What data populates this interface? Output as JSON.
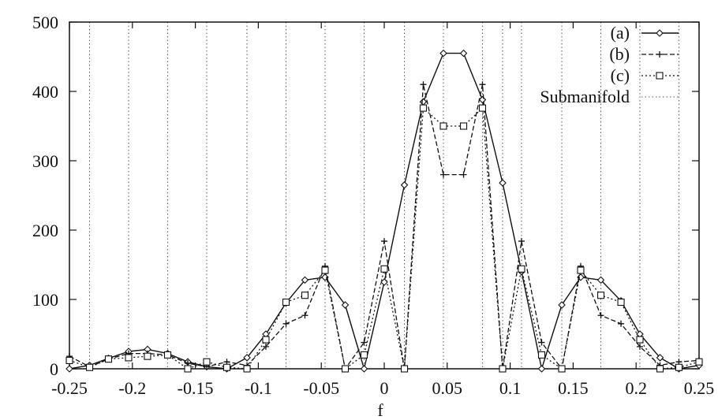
{
  "chart_data": {
    "type": "line",
    "xlabel": "f",
    "ylabel": "",
    "xlim": [
      -0.25,
      0.25
    ],
    "ylim": [
      0,
      500
    ],
    "x_ticks": [
      -0.25,
      -0.2,
      -0.15,
      -0.1,
      -0.05,
      0,
      0.05,
      0.1,
      0.15,
      0.2,
      0.25
    ],
    "x_tick_labels": [
      "-0.25",
      "-0.2",
      "-0.15",
      "-0.1",
      "-0.05",
      "0",
      "0.05",
      "0.1",
      "0.15",
      "0.2",
      "0.25"
    ],
    "y_ticks": [
      0,
      100,
      200,
      300,
      400,
      500
    ],
    "y_tick_labels": [
      "0",
      "100",
      "200",
      "300",
      "400",
      "500"
    ],
    "grid": "vertical dotted lines at submanifold frequencies",
    "legend": "top-right",
    "series": [
      {
        "name": "(a)",
        "marker": "diamond",
        "line": "solid",
        "points": [
          [
            -0.25,
            0
          ],
          [
            -0.234,
            5
          ],
          [
            -0.219,
            15
          ],
          [
            -0.203,
            25
          ],
          [
            -0.188,
            28
          ],
          [
            -0.172,
            22
          ],
          [
            -0.156,
            10
          ],
          [
            -0.141,
            3
          ],
          [
            -0.125,
            0
          ],
          [
            -0.109,
            16
          ],
          [
            -0.094,
            50
          ],
          [
            -0.078,
            95
          ],
          [
            -0.063,
            128
          ],
          [
            -0.047,
            132
          ],
          [
            -0.031,
            92
          ],
          [
            -0.016,
            0
          ],
          [
            0,
            125
          ],
          [
            0.016,
            265
          ],
          [
            0.031,
            385
          ],
          [
            0.047,
            455
          ],
          [
            0.063,
            455
          ],
          [
            0.078,
            388
          ],
          [
            0.094,
            268
          ],
          [
            0.109,
            140
          ],
          [
            0.125,
            0
          ],
          [
            0.141,
            92
          ],
          [
            0.156,
            132
          ],
          [
            0.172,
            128
          ],
          [
            0.188,
            98
          ],
          [
            0.203,
            50
          ],
          [
            0.219,
            16
          ],
          [
            0.234,
            0
          ],
          [
            0.25,
            5
          ]
        ]
      },
      {
        "name": "(b)",
        "marker": "plus",
        "line": "dashed",
        "points": [
          [
            -0.25,
            18
          ],
          [
            -0.234,
            3
          ],
          [
            -0.219,
            14
          ],
          [
            -0.203,
            22
          ],
          [
            -0.188,
            22
          ],
          [
            -0.172,
            20
          ],
          [
            -0.156,
            8
          ],
          [
            -0.141,
            3
          ],
          [
            -0.125,
            10
          ],
          [
            -0.109,
            5
          ],
          [
            -0.094,
            32
          ],
          [
            -0.078,
            65
          ],
          [
            -0.063,
            77
          ],
          [
            -0.047,
            148
          ],
          [
            -0.031,
            0
          ],
          [
            -0.016,
            38
          ],
          [
            0,
            184
          ],
          [
            0.016,
            0
          ],
          [
            0.031,
            410
          ],
          [
            0.047,
            280
          ],
          [
            0.063,
            280
          ],
          [
            0.078,
            410
          ],
          [
            0.094,
            0
          ],
          [
            0.109,
            184
          ],
          [
            0.125,
            38
          ],
          [
            0.141,
            0
          ],
          [
            0.156,
            148
          ],
          [
            0.172,
            77
          ],
          [
            0.188,
            65
          ],
          [
            0.203,
            32
          ],
          [
            0.219,
            5
          ],
          [
            0.234,
            10
          ],
          [
            0.25,
            12
          ]
        ]
      },
      {
        "name": "(c)",
        "marker": "square",
        "line": "dotted",
        "points": [
          [
            -0.25,
            12
          ],
          [
            -0.234,
            2
          ],
          [
            -0.219,
            14
          ],
          [
            -0.203,
            16
          ],
          [
            -0.188,
            18
          ],
          [
            -0.172,
            20
          ],
          [
            -0.156,
            0
          ],
          [
            -0.141,
            10
          ],
          [
            -0.125,
            2
          ],
          [
            -0.109,
            0
          ],
          [
            -0.094,
            42
          ],
          [
            -0.078,
            96
          ],
          [
            -0.063,
            106
          ],
          [
            -0.047,
            142
          ],
          [
            -0.031,
            0
          ],
          [
            -0.016,
            20
          ],
          [
            0,
            144
          ],
          [
            0.016,
            0
          ],
          [
            0.031,
            376
          ],
          [
            0.047,
            350
          ],
          [
            0.063,
            350
          ],
          [
            0.078,
            376
          ],
          [
            0.094,
            0
          ],
          [
            0.109,
            144
          ],
          [
            0.125,
            20
          ],
          [
            0.141,
            0
          ],
          [
            0.156,
            142
          ],
          [
            0.172,
            106
          ],
          [
            0.188,
            96
          ],
          [
            0.203,
            42
          ],
          [
            0.219,
            0
          ],
          [
            0.234,
            2
          ],
          [
            0.25,
            10
          ]
        ]
      },
      {
        "name": "Submanifold",
        "marker": "none",
        "line": "dotted-vertical",
        "x_positions": [
          -0.234,
          -0.203,
          -0.172,
          -0.141,
          -0.109,
          -0.078,
          -0.047,
          -0.016,
          0.016,
          0.047,
          0.078,
          0.094,
          0.109,
          0.141,
          0.172,
          0.203,
          0.234
        ]
      }
    ]
  }
}
